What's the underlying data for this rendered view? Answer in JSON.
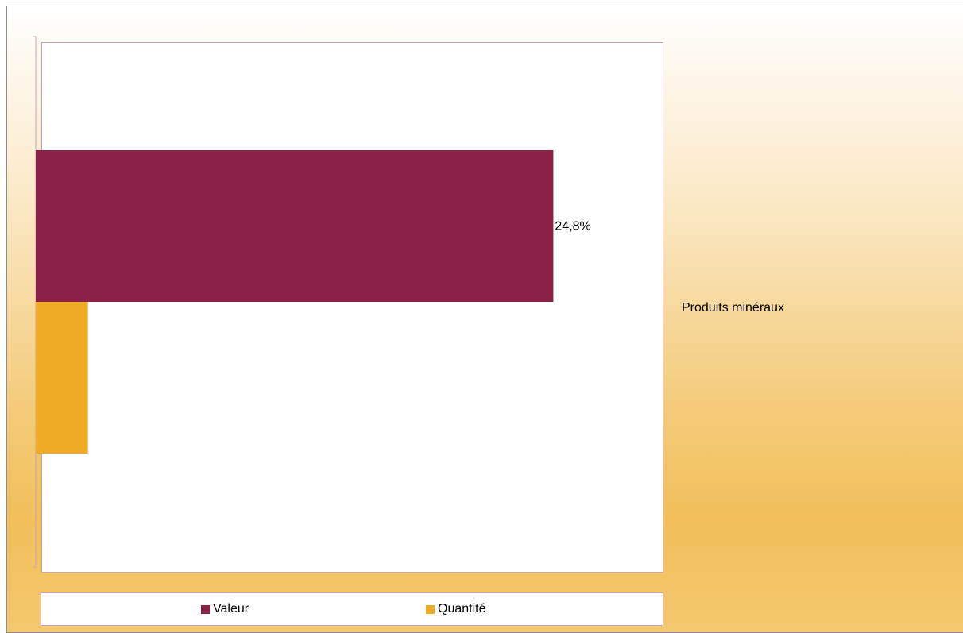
{
  "chart_data": {
    "type": "bar",
    "orientation": "horizontal",
    "categories": [
      "Produits minéraux"
    ],
    "series": [
      {
        "name": "Valeur",
        "values": [
          24.8
        ],
        "label": "24,8%",
        "color": "#8b2146"
      },
      {
        "name": "Quantité",
        "values": [
          2.5
        ],
        "label": "",
        "color": "#efaa26"
      }
    ],
    "xlim": [
      0,
      30
    ],
    "grid": false,
    "legend_position": "bottom"
  }
}
